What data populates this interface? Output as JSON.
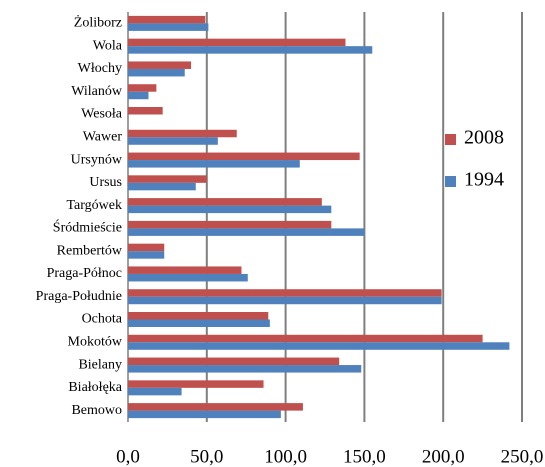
{
  "chart_data": {
    "type": "hbar",
    "categories": [
      "Żoliborz",
      "Wola",
      "Włochy",
      "Wilanów",
      "Wesoła",
      "Wawer",
      "Ursynów",
      "Ursus",
      "Targówek",
      "Śródmieście",
      "Rembertów",
      "Praga-Północ",
      "Praga-Południe",
      "Ochota",
      "Mokotów",
      "Bielany",
      "Białołęka",
      "Bemowo"
    ],
    "series": [
      {
        "name": "2008",
        "color": "#c0504d",
        "values": [
          49,
          138,
          40,
          18,
          22,
          69,
          147,
          50,
          123,
          129,
          23,
          72,
          199,
          89,
          225,
          134,
          86,
          111
        ]
      },
      {
        "name": "1994",
        "color": "#4f81bd",
        "values": [
          51,
          155,
          36,
          13,
          null,
          57,
          109,
          43,
          129,
          150,
          23,
          76,
          199,
          90,
          242,
          148,
          34,
          97
        ]
      }
    ],
    "xlim": [
      0,
      250
    ],
    "xticks": [
      {
        "value": 0,
        "label": "0,0"
      },
      {
        "value": 50,
        "label": "50,0"
      },
      {
        "value": 100,
        "label": "100,0"
      },
      {
        "value": 150,
        "label": "150,0"
      },
      {
        "value": 200,
        "label": "200,0"
      },
      {
        "value": 250,
        "label": "250,0"
      }
    ],
    "grid": true,
    "legend": "right"
  }
}
